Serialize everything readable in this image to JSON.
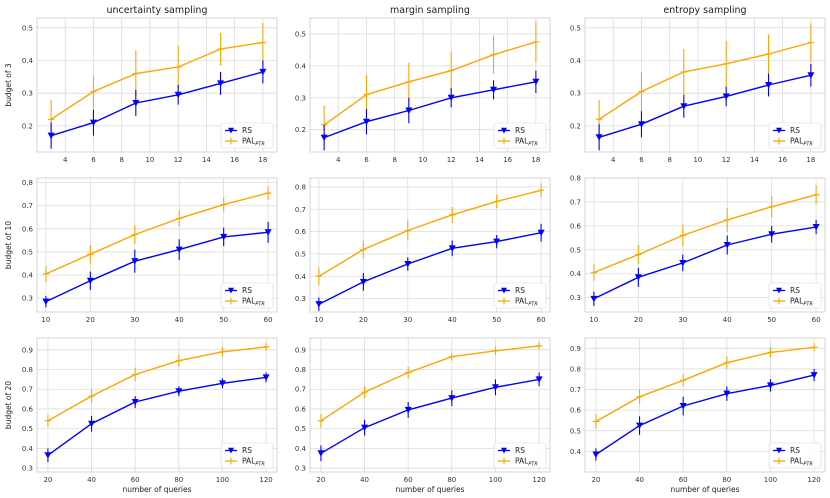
{
  "figure": {
    "column_titles": [
      "uncertainty sampling",
      "margin sampling",
      "entropy sampling"
    ],
    "row_ylabels": [
      "budget of 3",
      "budget of 10",
      "budget of 20"
    ],
    "xlabel": "number of queries",
    "legend": {
      "rs": "RS",
      "pal_main": "PAL",
      "pal_sub": "PTR"
    },
    "colors": {
      "rs": "#0000ff",
      "pal": "#ffa500",
      "grid": "#dcdcdc",
      "frame": "#cccccc"
    }
  },
  "chart_data": [
    {
      "type": "line",
      "title": "uncertainty sampling",
      "ylabel": "budget of 3",
      "xlabel": "",
      "x": [
        3,
        6,
        9,
        12,
        15,
        18
      ],
      "xlim": [
        2,
        19
      ],
      "xticks": [
        4,
        6,
        8,
        10,
        12,
        14,
        16,
        18
      ],
      "ylim": [
        0.12,
        0.53
      ],
      "yticks": [
        0.2,
        0.3,
        0.4,
        0.5
      ],
      "series": [
        {
          "name": "RS",
          "values": [
            0.17,
            0.21,
            0.27,
            0.295,
            0.33,
            0.365
          ],
          "errors": [
            0.04,
            0.04,
            0.04,
            0.03,
            0.035,
            0.035
          ]
        },
        {
          "name": "PAL_PTR",
          "values": [
            0.22,
            0.305,
            0.36,
            0.38,
            0.435,
            0.455
          ],
          "errors": [
            0.06,
            0.05,
            0.07,
            0.065,
            0.05,
            0.06
          ]
        }
      ]
    },
    {
      "type": "line",
      "title": "margin sampling",
      "ylabel": "",
      "xlabel": "",
      "x": [
        3,
        6,
        9,
        12,
        15,
        18
      ],
      "xlim": [
        2,
        19
      ],
      "xticks": [
        4,
        6,
        8,
        10,
        12,
        14,
        16,
        18
      ],
      "ylim": [
        0.13,
        0.55
      ],
      "yticks": [
        0.2,
        0.3,
        0.4,
        0.5
      ],
      "series": [
        {
          "name": "RS",
          "values": [
            0.175,
            0.225,
            0.26,
            0.3,
            0.325,
            0.35
          ],
          "errors": [
            0.04,
            0.04,
            0.04,
            0.03,
            0.03,
            0.035
          ]
        },
        {
          "name": "PAL_PTR",
          "values": [
            0.215,
            0.31,
            0.35,
            0.385,
            0.435,
            0.475
          ],
          "errors": [
            0.06,
            0.06,
            0.06,
            0.06,
            0.06,
            0.065
          ]
        }
      ]
    },
    {
      "type": "line",
      "title": "entropy sampling",
      "ylabel": "",
      "xlabel": "",
      "x": [
        3,
        6,
        9,
        12,
        15,
        18
      ],
      "xlim": [
        2,
        19
      ],
      "xticks": [
        4,
        6,
        8,
        10,
        12,
        14,
        16,
        18
      ],
      "ylim": [
        0.12,
        0.53
      ],
      "yticks": [
        0.2,
        0.3,
        0.4,
        0.5
      ],
      "series": [
        {
          "name": "RS",
          "values": [
            0.165,
            0.205,
            0.26,
            0.29,
            0.325,
            0.355
          ],
          "errors": [
            0.04,
            0.04,
            0.035,
            0.03,
            0.035,
            0.035
          ]
        },
        {
          "name": "PAL_PTR",
          "values": [
            0.22,
            0.305,
            0.365,
            0.39,
            0.42,
            0.455
          ],
          "errors": [
            0.06,
            0.06,
            0.07,
            0.07,
            0.06,
            0.06
          ]
        }
      ]
    },
    {
      "type": "line",
      "title": "",
      "ylabel": "budget of 10",
      "xlabel": "",
      "x": [
        10,
        20,
        30,
        40,
        50,
        60
      ],
      "xlim": [
        8,
        62
      ],
      "xticks": [
        10,
        20,
        30,
        40,
        50,
        60
      ],
      "ylim": [
        0.24,
        0.82
      ],
      "yticks": [
        0.3,
        0.4,
        0.5,
        0.6,
        0.7,
        0.8
      ],
      "series": [
        {
          "name": "RS",
          "values": [
            0.285,
            0.375,
            0.46,
            0.51,
            0.565,
            0.585
          ],
          "errors": [
            0.025,
            0.04,
            0.05,
            0.045,
            0.04,
            0.045
          ]
        },
        {
          "name": "PAL_PTR",
          "values": [
            0.405,
            0.49,
            0.575,
            0.645,
            0.705,
            0.755
          ],
          "errors": [
            0.035,
            0.04,
            0.04,
            0.035,
            0.03,
            0.03
          ]
        }
      ]
    },
    {
      "type": "line",
      "title": "",
      "ylabel": "",
      "xlabel": "",
      "x": [
        10,
        20,
        30,
        40,
        50,
        60
      ],
      "xlim": [
        8,
        62
      ],
      "xticks": [
        10,
        20,
        30,
        40,
        50,
        60
      ],
      "ylim": [
        0.24,
        0.84
      ],
      "yticks": [
        0.3,
        0.4,
        0.5,
        0.6,
        0.7,
        0.8
      ],
      "series": [
        {
          "name": "RS",
          "values": [
            0.275,
            0.375,
            0.455,
            0.525,
            0.555,
            0.595
          ],
          "errors": [
            0.03,
            0.04,
            0.03,
            0.035,
            0.03,
            0.04
          ]
        },
        {
          "name": "PAL_PTR",
          "values": [
            0.4,
            0.52,
            0.605,
            0.675,
            0.735,
            0.785
          ],
          "errors": [
            0.04,
            0.04,
            0.045,
            0.035,
            0.03,
            0.03
          ]
        }
      ]
    },
    {
      "type": "line",
      "title": "",
      "ylabel": "",
      "xlabel": "",
      "x": [
        10,
        20,
        30,
        40,
        50,
        60
      ],
      "xlim": [
        8,
        62
      ],
      "xticks": [
        10,
        20,
        30,
        40,
        50,
        60
      ],
      "ylim": [
        0.24,
        0.8
      ],
      "yticks": [
        0.3,
        0.4,
        0.5,
        0.6,
        0.7,
        0.8
      ],
      "series": [
        {
          "name": "RS",
          "values": [
            0.295,
            0.385,
            0.445,
            0.52,
            0.565,
            0.595
          ],
          "errors": [
            0.03,
            0.04,
            0.035,
            0.04,
            0.035,
            0.03
          ]
        },
        {
          "name": "PAL_PTR",
          "values": [
            0.405,
            0.48,
            0.56,
            0.625,
            0.68,
            0.73
          ],
          "errors": [
            0.035,
            0.04,
            0.045,
            0.05,
            0.045,
            0.04
          ]
        }
      ]
    },
    {
      "type": "line",
      "title": "",
      "ylabel": "budget of 20",
      "xlabel": "number of queries",
      "x": [
        20,
        40,
        60,
        80,
        100,
        120
      ],
      "xlim": [
        15,
        125
      ],
      "xticks": [
        20,
        40,
        60,
        80,
        100,
        120
      ],
      "ylim": [
        0.28,
        0.96
      ],
      "yticks": [
        0.3,
        0.4,
        0.5,
        0.6,
        0.7,
        0.8,
        0.9
      ],
      "series": [
        {
          "name": "RS",
          "values": [
            0.365,
            0.525,
            0.635,
            0.69,
            0.73,
            0.76
          ],
          "errors": [
            0.035,
            0.04,
            0.03,
            0.025,
            0.025,
            0.025
          ]
        },
        {
          "name": "PAL_PTR",
          "values": [
            0.54,
            0.665,
            0.775,
            0.845,
            0.89,
            0.915
          ],
          "errors": [
            0.03,
            0.035,
            0.035,
            0.03,
            0.025,
            0.02
          ]
        }
      ]
    },
    {
      "type": "line",
      "title": "",
      "ylabel": "",
      "xlabel": "number of queries",
      "x": [
        20,
        40,
        60,
        80,
        100,
        120
      ],
      "xlim": [
        15,
        125
      ],
      "xticks": [
        20,
        40,
        60,
        80,
        100,
        120
      ],
      "ylim": [
        0.28,
        0.96
      ],
      "yticks": [
        0.3,
        0.4,
        0.5,
        0.6,
        0.7,
        0.8,
        0.9
      ],
      "series": [
        {
          "name": "RS",
          "values": [
            0.375,
            0.505,
            0.595,
            0.655,
            0.71,
            0.75
          ],
          "errors": [
            0.04,
            0.04,
            0.04,
            0.04,
            0.04,
            0.035
          ]
        },
        {
          "name": "PAL_PTR",
          "values": [
            0.54,
            0.685,
            0.785,
            0.865,
            0.895,
            0.92
          ],
          "errors": [
            0.035,
            0.03,
            0.03,
            0.02,
            0.02,
            0.02
          ]
        }
      ]
    },
    {
      "type": "line",
      "title": "",
      "ylabel": "",
      "xlabel": "number of queries",
      "x": [
        20,
        40,
        60,
        80,
        100,
        120
      ],
      "xlim": [
        15,
        125
      ],
      "xticks": [
        20,
        40,
        60,
        80,
        100,
        120
      ],
      "ylim": [
        0.3,
        0.95
      ],
      "yticks": [
        0.4,
        0.5,
        0.6,
        0.7,
        0.8,
        0.9
      ],
      "series": [
        {
          "name": "RS",
          "values": [
            0.385,
            0.525,
            0.62,
            0.68,
            0.72,
            0.77
          ],
          "errors": [
            0.03,
            0.045,
            0.045,
            0.035,
            0.03,
            0.03
          ]
        },
        {
          "name": "PAL_PTR",
          "values": [
            0.545,
            0.665,
            0.745,
            0.83,
            0.88,
            0.905
          ],
          "errors": [
            0.035,
            0.035,
            0.03,
            0.03,
            0.025,
            0.02
          ]
        }
      ]
    }
  ]
}
